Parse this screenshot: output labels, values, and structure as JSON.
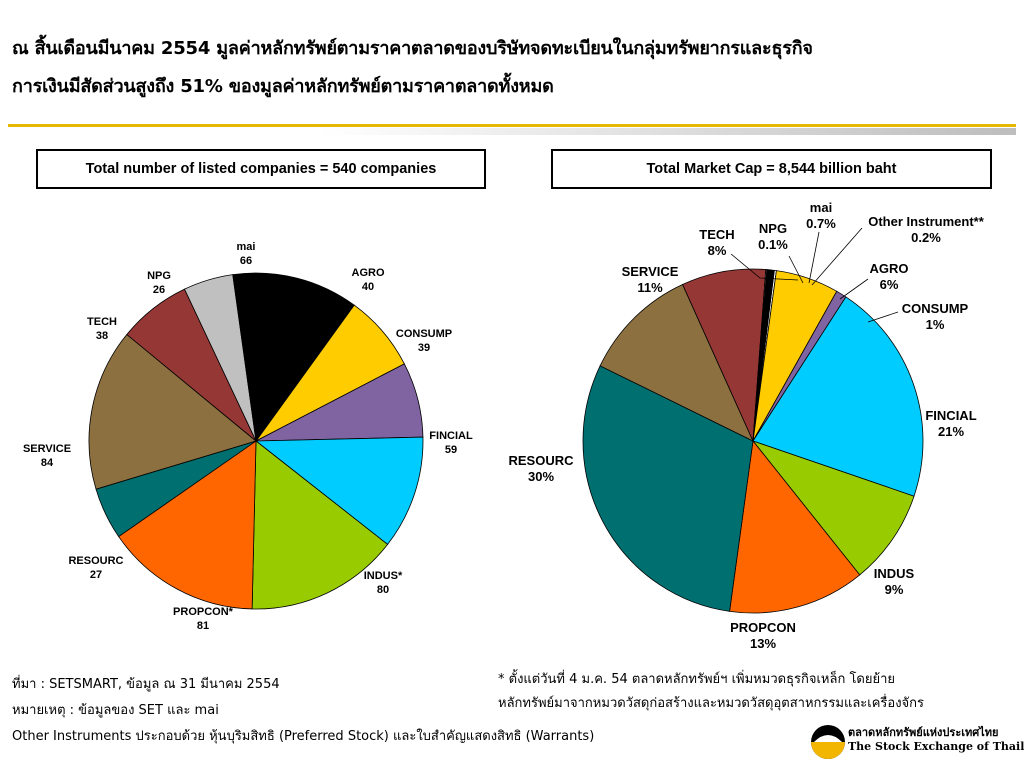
{
  "header": {
    "line1": "ณ สิ้นเดือนมีนาคม 2554 มูลค่าหลักทรัพย์ตามราคาตลาดของบริษัทจดทะเบียนในกลุ่มทรัพยากรและธุรกิจ",
    "line2": "การเงินมีสัดส่วนสูงถึง 51% ของมูลค่าหลักทรัพย์ตามราคาตลาดทั้งหมด"
  },
  "colors": {
    "AGRO": "#ffcc00",
    "CONSUMP": "#8064a2",
    "FINCIAL": "#00ccff",
    "INDUS": "#99cc00",
    "PROPCON": "#ff6600",
    "RESOURC": "#006f70",
    "SERVICE": "#8c7040",
    "TECH": "#953735",
    "NPG": "#c0c0c0",
    "mai": "#000000",
    "Other Instrument": "#ffffff",
    "accent_rule": "#e6b800"
  },
  "chart_data": [
    {
      "type": "pie",
      "title": "Total number of listed companies = 540 companies",
      "slices": [
        {
          "key": "AGRO",
          "label": "AGRO",
          "value": 40,
          "value_label": "40"
        },
        {
          "key": "CONSUMP",
          "label": "CONSUMP",
          "value": 39,
          "value_label": "39"
        },
        {
          "key": "FINCIAL",
          "label": "FINCIAL",
          "value": 59,
          "value_label": "59"
        },
        {
          "key": "INDUS",
          "label": "INDUS*",
          "value": 80,
          "value_label": "80"
        },
        {
          "key": "PROPCON",
          "label": "PROPCON*",
          "value": 81,
          "value_label": "81"
        },
        {
          "key": "RESOURC",
          "label": "RESOURC",
          "value": 27,
          "value_label": "27"
        },
        {
          "key": "SERVICE",
          "label": "SERVICE",
          "value": 84,
          "value_label": "84"
        },
        {
          "key": "TECH",
          "label": "TECH",
          "value": 38,
          "value_label": "38"
        },
        {
          "key": "NPG",
          "label": "NPG",
          "value": 26,
          "value_label": "26"
        },
        {
          "key": "mai",
          "label": "mai",
          "value": 66,
          "value_label": "66"
        }
      ]
    },
    {
      "type": "pie",
      "title": "Total Market Cap = 8,544  billion baht",
      "slices": [
        {
          "key": "Other Instrument",
          "label": "Other Instrument**",
          "value": 0.2,
          "value_label": "0.2%"
        },
        {
          "key": "AGRO",
          "label": "AGRO",
          "value": 6,
          "value_label": "6%"
        },
        {
          "key": "CONSUMP",
          "label": "CONSUMP",
          "value": 1,
          "value_label": "1%"
        },
        {
          "key": "FINCIAL",
          "label": "FINCIAL",
          "value": 21,
          "value_label": "21%"
        },
        {
          "key": "INDUS",
          "label": "INDUS",
          "value": 9,
          "value_label": "9%"
        },
        {
          "key": "PROPCON",
          "label": "PROPCON",
          "value": 13,
          "value_label": "13%"
        },
        {
          "key": "RESOURC",
          "label": "RESOURC",
          "value": 30,
          "value_label": "30%"
        },
        {
          "key": "SERVICE",
          "label": "SERVICE",
          "value": 11,
          "value_label": "11%"
        },
        {
          "key": "TECH",
          "label": "TECH",
          "value": 8,
          "value_label": "8%"
        },
        {
          "key": "NPG",
          "label": "NPG",
          "value": 0.1,
          "value_label": "0.1%"
        },
        {
          "key": "mai",
          "label": "mai",
          "value": 0.7,
          "value_label": "0.7%"
        }
      ]
    }
  ],
  "footer": {
    "source": "ที่มา : SETSMART, ข้อมูล ณ 31 มีนาคม 2554",
    "remark": "หมายเหตุ : ข้อมูลของ SET และ mai",
    "other_instruments": "Other Instruments ประกอบด้วย หุ้นบุริมสิทธิ (Preferred Stock) และใบสำคัญแสดงสิทธิ (Warrants)",
    "note_line1": "* ตั้งแต่วันที่ 4 ม.ค. 54 ตลาดหลักทรัพย์ฯ เพิ่มหมวดธุรกิจเหล็ก โดยย้าย",
    "note_line2": "หลักทรัพย์มาจากหมวดวัสดุก่อสร้างและหมวดวัสดุอุตสาหกรรมและเครื่องจักร"
  },
  "logo": {
    "name_th": "ตลาดหลักทรัพย์แห่งประเทศไทย",
    "name_en": "The Stock Exchange of Thailand",
    "icon": "set-logo-icon"
  }
}
